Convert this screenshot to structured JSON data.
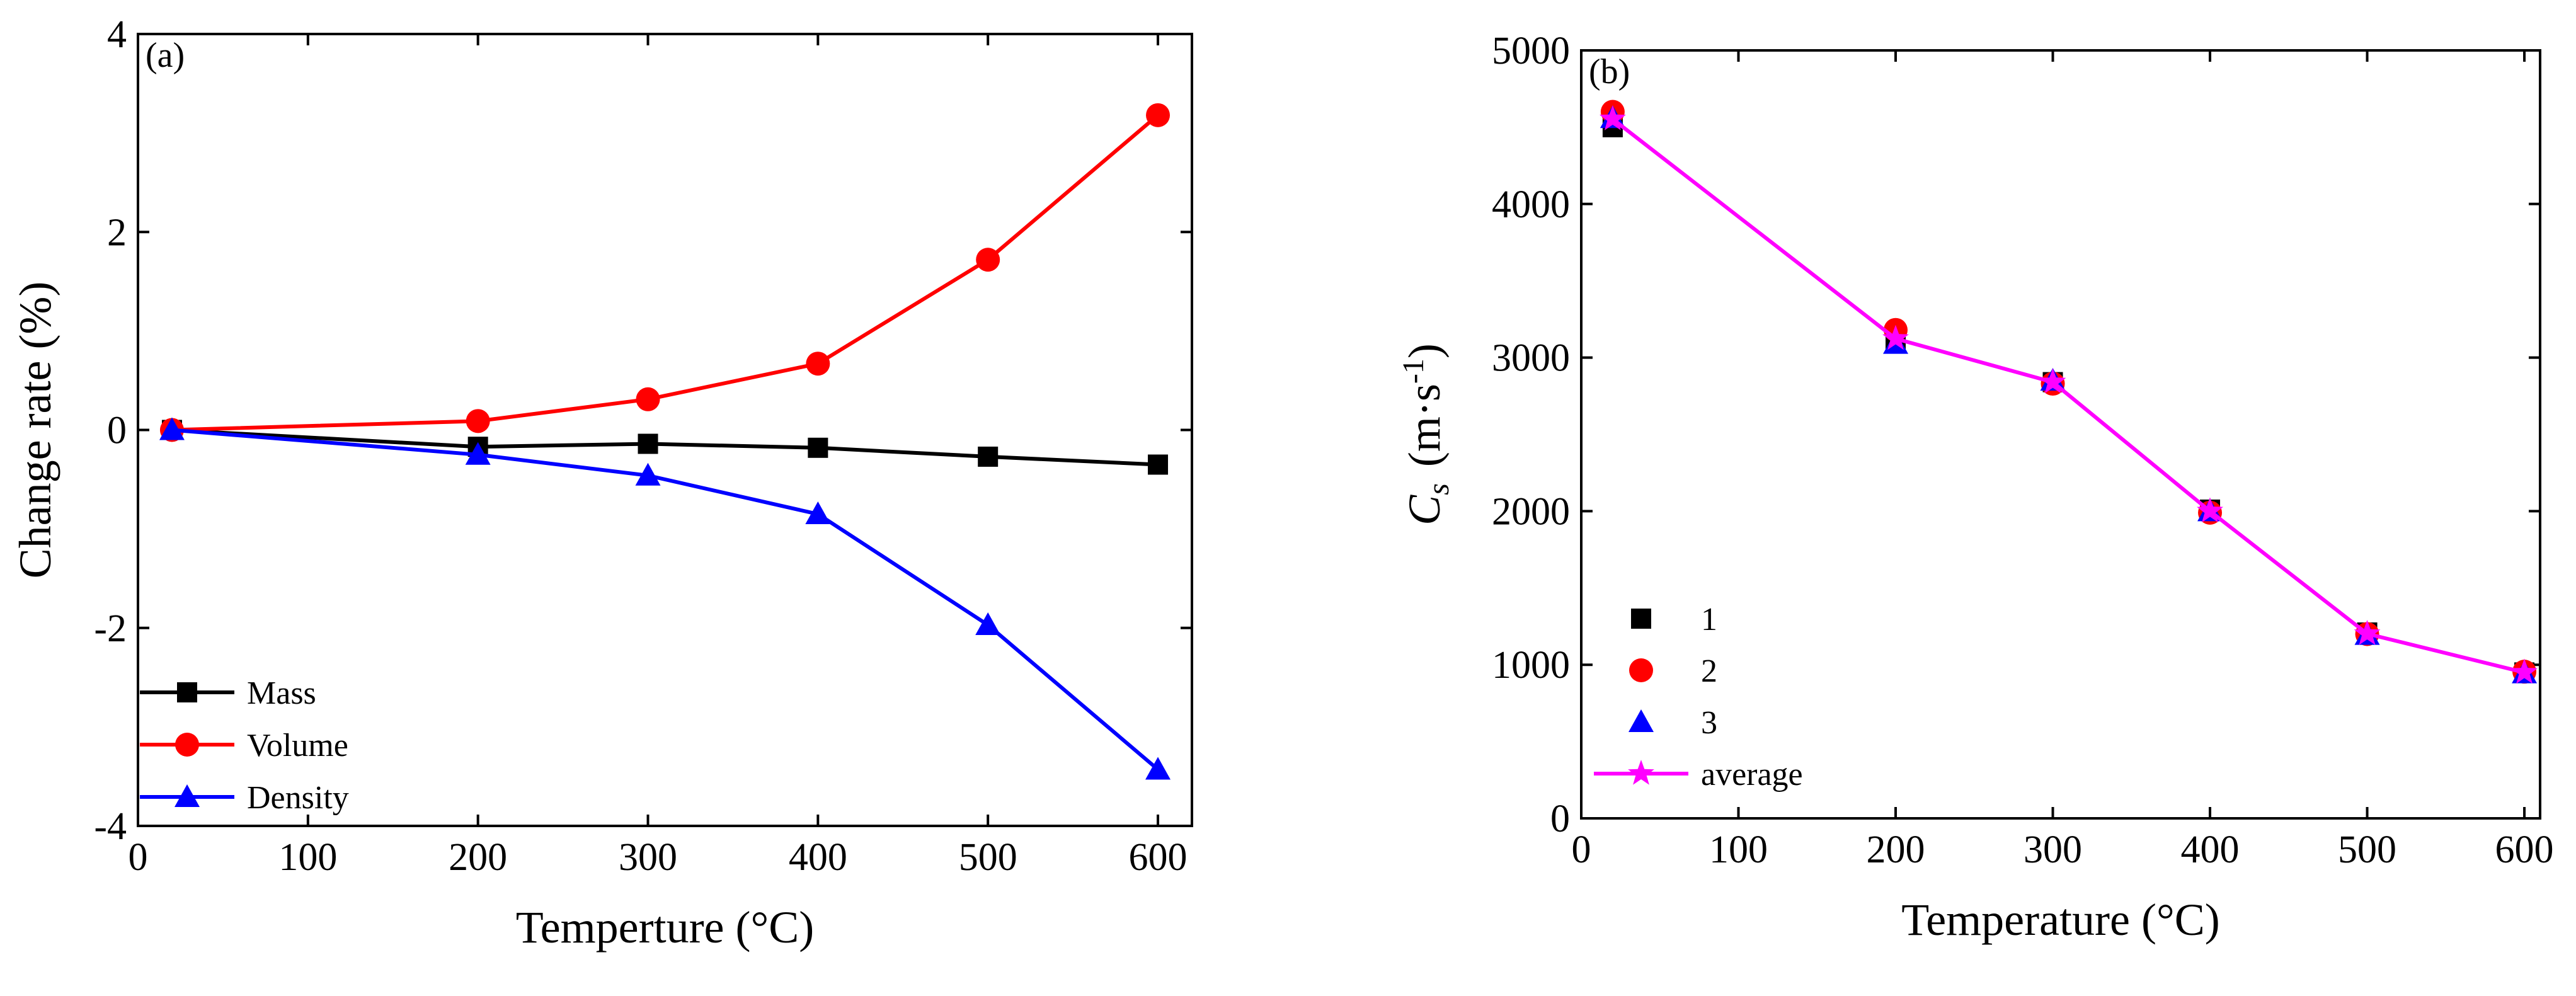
{
  "chart_data": [
    {
      "type": "line",
      "panel_label": "(a)",
      "title": "",
      "xlabel": "Temperture (°C)",
      "ylabel": "Change rate (%)",
      "xlim": [
        0,
        620
      ],
      "ylim": [
        -4,
        4
      ],
      "x_ticks": [
        0,
        100,
        200,
        300,
        400,
        500,
        600
      ],
      "x_tick_labels": [
        "0",
        "100",
        "200",
        "300",
        "400",
        "500",
        "600"
      ],
      "y_ticks": [
        -4,
        -2,
        0,
        2,
        4
      ],
      "y_tick_labels": [
        "-4",
        "-2",
        "0",
        "2",
        "4"
      ],
      "legend_position": "bottom-left",
      "series": [
        {
          "name": "Mass",
          "color": "#000000",
          "marker": "square",
          "x": [
            20,
            200,
            300,
            400,
            500,
            600
          ],
          "y": [
            0,
            -0.17,
            -0.14,
            -0.18,
            -0.27,
            -0.35
          ]
        },
        {
          "name": "Volume",
          "color": "#ff0000",
          "marker": "circle",
          "x": [
            20,
            200,
            300,
            400,
            500,
            600
          ],
          "y": [
            0,
            0.09,
            0.31,
            0.67,
            1.72,
            3.18
          ]
        },
        {
          "name": "Density",
          "color": "#0000ff",
          "marker": "triangle",
          "x": [
            20,
            200,
            300,
            400,
            500,
            600
          ],
          "y": [
            0,
            -0.25,
            -0.46,
            -0.85,
            -1.97,
            -3.43
          ]
        }
      ]
    },
    {
      "type": "scatter",
      "panel_label": "(b)",
      "title": "",
      "xlabel": "Temperature (°C)",
      "ylabel": "Cs (m·s-1)",
      "ylabel_symbol": "C",
      "ylabel_subscript": "s",
      "ylabel_units_before": "(m·s",
      "ylabel_units_sup": "-1",
      "ylabel_units_after": ")",
      "xlim": [
        0,
        610
      ],
      "ylim": [
        0,
        5000
      ],
      "x_ticks": [
        0,
        100,
        200,
        300,
        400,
        500,
        600
      ],
      "x_tick_labels": [
        "0",
        "100",
        "200",
        "300",
        "400",
        "500",
        "600"
      ],
      "y_ticks": [
        0,
        1000,
        2000,
        3000,
        4000,
        5000
      ],
      "y_tick_labels": [
        "0",
        "1000",
        "2000",
        "3000",
        "4000",
        "5000"
      ],
      "legend_position": "bottom-left",
      "series": [
        {
          "name": "1",
          "color": "#000000",
          "marker": "square",
          "line": false,
          "x": [
            20,
            200,
            300,
            400,
            500,
            600
          ],
          "y": [
            4500,
            3100,
            2840,
            2010,
            1210,
            950
          ]
        },
        {
          "name": "2",
          "color": "#ff0000",
          "marker": "circle",
          "line": false,
          "x": [
            20,
            200,
            300,
            400,
            500,
            600
          ],
          "y": [
            4600,
            3180,
            2830,
            1990,
            1200,
            955
          ]
        },
        {
          "name": "3",
          "color": "#0000ff",
          "marker": "triangle",
          "line": false,
          "x": [
            20,
            200,
            300,
            400,
            500,
            600
          ],
          "y": [
            4560,
            3090,
            2850,
            2000,
            1195,
            945
          ]
        },
        {
          "name": "average",
          "color": "#ff00ff",
          "marker": "star",
          "line": true,
          "x": [
            20,
            200,
            300,
            400,
            500,
            600
          ],
          "y": [
            4553,
            3123,
            2840,
            2000,
            1202,
            950
          ]
        }
      ]
    }
  ]
}
